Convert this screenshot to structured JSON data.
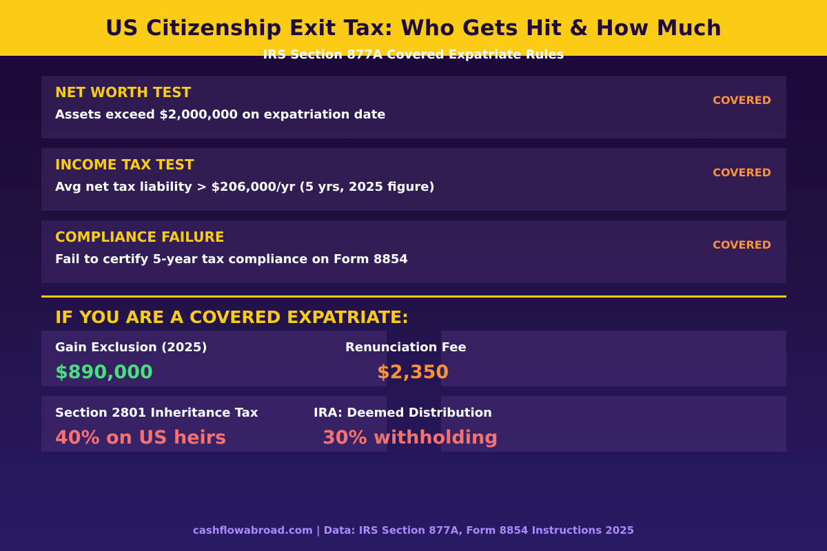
{
  "header": {
    "title": "US Citizenship Exit Tax: Who Gets Hit & How Much",
    "subtitle": "IRS Section 877A Covered Expatriate Rules"
  },
  "tests": [
    {
      "title": "NET WORTH TEST",
      "description": "Assets exceed $2,000,000 on expatriation date",
      "status": "COVERED"
    },
    {
      "title": "INCOME TAX TEST",
      "description": "Avg net tax liability > $206,000/yr (5 yrs, 2025 figure)",
      "status": "COVERED"
    },
    {
      "title": "COMPLIANCE FAILURE",
      "description": "Fail to certify 5-year tax compliance on Form 8854",
      "status": "COVERED"
    }
  ],
  "consequences": {
    "heading": "IF YOU ARE A COVERED EXPATRIATE:",
    "items": [
      {
        "label": "Gain Exclusion (2025)",
        "value": "$890,000"
      },
      {
        "label": "Renunciation Fee",
        "value": "$2,350"
      },
      {
        "label": "Section 2801 Inheritance Tax",
        "value": "40% on US heirs"
      },
      {
        "label": "IRA: Deemed Distribution",
        "value": "30% withholding"
      }
    ]
  },
  "footer": {
    "text": "cashflowabroad.com | Data: IRS Section 877A, Form 8854 Instructions 2025"
  },
  "colors": {
    "header_background": "#facc15",
    "accent_yellow": "#facc15",
    "status_orange": "#fb923c",
    "value_green": "#4ade80",
    "value_orange": "#fb923c",
    "value_red": "#f87171",
    "footer_purple": "#a78bfa"
  }
}
